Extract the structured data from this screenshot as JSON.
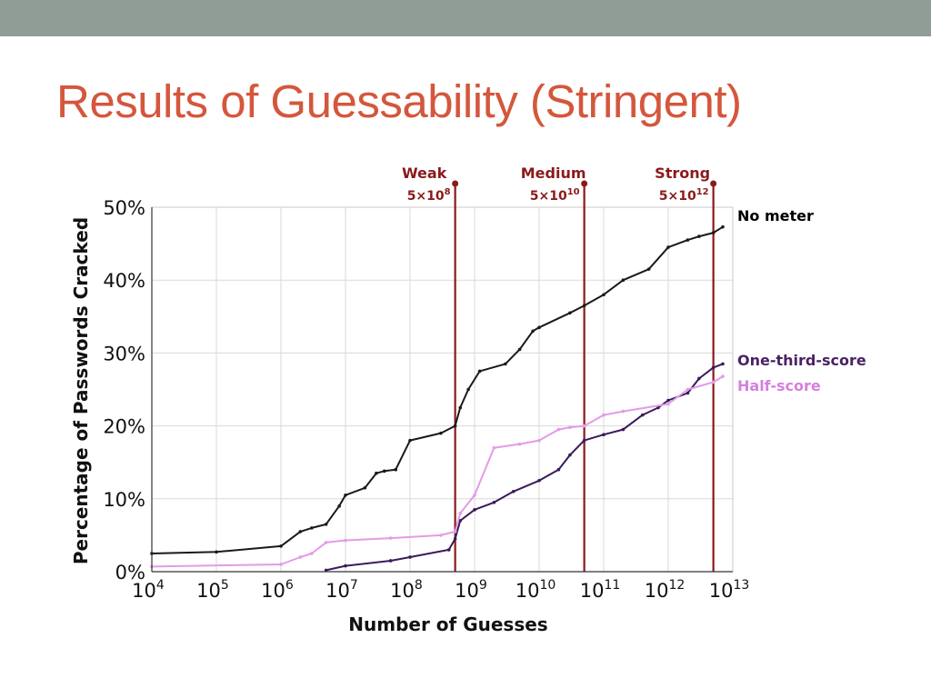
{
  "slide": {
    "title": "Results of Guessability (Stringent)"
  },
  "colors": {
    "top_bar": "#909c96",
    "title": "#d4573c"
  },
  "chart_data": {
    "type": "line",
    "xlabel": "Number of Guesses",
    "ylabel": "Percentage of Passwords Cracked",
    "x_scale": "log10",
    "xlim": [
      10000,
      10000000000000
    ],
    "ylim": [
      0,
      50
    ],
    "x_ticks": [
      {
        "base": "10",
        "exp": "4"
      },
      {
        "base": "10",
        "exp": "5"
      },
      {
        "base": "10",
        "exp": "6"
      },
      {
        "base": "10",
        "exp": "7"
      },
      {
        "base": "10",
        "exp": "8"
      },
      {
        "base": "10",
        "exp": "9"
      },
      {
        "base": "10",
        "exp": "10"
      },
      {
        "base": "10",
        "exp": "11"
      },
      {
        "base": "10",
        "exp": "12"
      },
      {
        "base": "10",
        "exp": "13"
      }
    ],
    "y_ticks": [
      "0%",
      "10%",
      "20%",
      "30%",
      "40%",
      "50%"
    ],
    "y_tick_values": [
      0,
      10,
      20,
      30,
      40,
      50
    ],
    "grid": true,
    "thresholds": [
      {
        "name": "Weak",
        "base": "5×10",
        "exp": "8",
        "value": 500000000,
        "color": "#8b1a1a"
      },
      {
        "name": "Medium",
        "base": "5×10",
        "exp": "10",
        "value": 50000000000,
        "color": "#8b1a1a"
      },
      {
        "name": "Strong",
        "base": "5×10",
        "exp": "12",
        "value": 5000000000000,
        "color": "#8b1a1a"
      }
    ],
    "series": [
      {
        "name": "No meter",
        "color": "#1a1a1a",
        "label_color": "#000000",
        "x": [
          10000,
          100000,
          1000000,
          2000000,
          3000000,
          5000000,
          8000000,
          10000000,
          20000000,
          30000000,
          40000000,
          60000000,
          100000000,
          300000000,
          500000000,
          600000000,
          800000000,
          1200000000,
          3000000000,
          5000000000,
          8000000000,
          10000000000,
          30000000000,
          50000000000,
          100000000000,
          200000000000,
          500000000000,
          1000000000000,
          2000000000000,
          3000000000000,
          5000000000000,
          7000000000000
        ],
        "y": [
          2.5,
          2.7,
          3.5,
          5.5,
          6.0,
          6.5,
          9.0,
          10.5,
          11.5,
          13.5,
          13.8,
          14.0,
          18.0,
          19.0,
          20.0,
          22.5,
          25.0,
          27.5,
          28.5,
          30.5,
          33.0,
          33.5,
          35.5,
          36.5,
          38.0,
          40.0,
          41.5,
          44.5,
          45.5,
          46.0,
          46.5,
          47.3
        ]
      },
      {
        "name": "One-third-score",
        "color": "#3b1a5c",
        "label_color": "#4a2266",
        "x": [
          5000000,
          10000000,
          50000000,
          100000000,
          400000000,
          500000000,
          600000000,
          1000000000,
          2000000000,
          4000000000,
          10000000000,
          20000000000,
          30000000000,
          50000000000,
          100000000000,
          200000000000,
          400000000000,
          700000000000,
          1000000000000,
          2000000000000,
          3000000000000,
          5000000000000,
          7000000000000
        ],
        "y": [
          0.2,
          0.8,
          1.5,
          2.0,
          3.0,
          4.5,
          7.0,
          8.5,
          9.5,
          11.0,
          12.5,
          14.0,
          16.0,
          18.0,
          18.8,
          19.5,
          21.5,
          22.5,
          23.5,
          24.5,
          26.5,
          28.0,
          28.5
        ]
      },
      {
        "name": "Half-score",
        "color": "#e39be8",
        "label_color": "#d67fe0",
        "x": [
          10000,
          1000000,
          2000000,
          3000000,
          5000000,
          10000000,
          50000000,
          300000000,
          500000000,
          600000000,
          1000000000,
          2000000000,
          5000000000,
          10000000000,
          20000000000,
          30000000000,
          50000000000,
          100000000000,
          200000000000,
          1000000000000,
          2000000000000,
          5000000000000,
          7000000000000
        ],
        "y": [
          0.7,
          1.0,
          2.0,
          2.5,
          4.0,
          4.3,
          4.6,
          5.0,
          5.5,
          8.0,
          10.5,
          17.0,
          17.5,
          18.0,
          19.5,
          19.8,
          20.0,
          21.5,
          22.0,
          23.0,
          25.0,
          26.0,
          26.8
        ]
      }
    ]
  }
}
